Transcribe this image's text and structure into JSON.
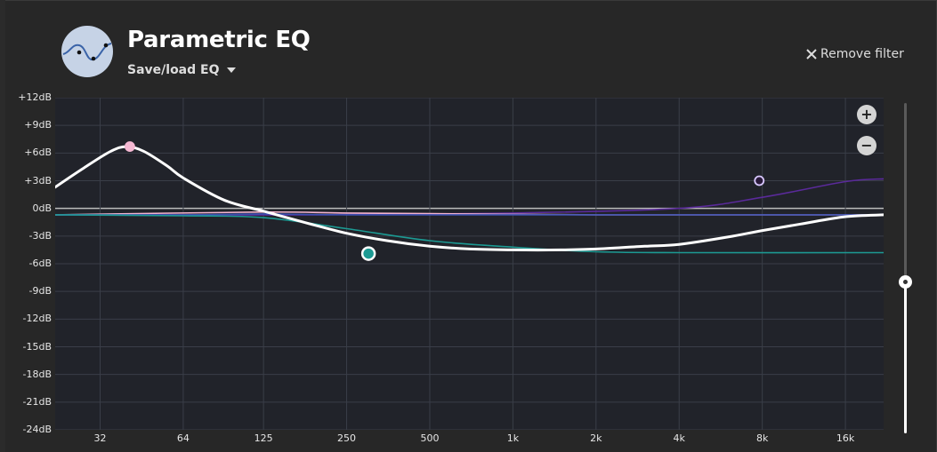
{
  "header": {
    "title": "Parametric EQ",
    "save_load": "Save/load EQ",
    "remove_filter": "Remove filter",
    "logo_icon": "eq-curve-icon"
  },
  "zoom": {
    "in_label": "+",
    "out_label": "−"
  },
  "gain_slider": {
    "value_fraction": 0.46
  },
  "colors": {
    "background": "#272727",
    "plot_bg": "#21232a",
    "grid": "#3a3e48",
    "total_curve": "#ffffff",
    "filter_pink": "#f3b4cf",
    "filter_teal": "#1c9a93",
    "filter_purple": "#5a2a9a",
    "filter_blue": "#3a4fb0"
  },
  "chart_data": {
    "type": "line",
    "title": "Parametric EQ",
    "xscale": "log",
    "xlim": [
      22,
      22000
    ],
    "ylim": [
      -24,
      12
    ],
    "x_ticks": [
      {
        "value": 32,
        "label": "32"
      },
      {
        "value": 64,
        "label": "64"
      },
      {
        "value": 125,
        "label": "125"
      },
      {
        "value": 250,
        "label": "250"
      },
      {
        "value": 500,
        "label": "500"
      },
      {
        "value": 1000,
        "label": "1k"
      },
      {
        "value": 2000,
        "label": "2k"
      },
      {
        "value": 4000,
        "label": "4k"
      },
      {
        "value": 8000,
        "label": "8k"
      },
      {
        "value": 16000,
        "label": "16k"
      }
    ],
    "y_ticks": [
      {
        "value": 12,
        "label": "+12dB"
      },
      {
        "value": 9,
        "label": "+9dB"
      },
      {
        "value": 6,
        "label": "+6dB"
      },
      {
        "value": 3,
        "label": "+3dB"
      },
      {
        "value": 0,
        "label": "0dB"
      },
      {
        "value": -3,
        "label": "-3dB"
      },
      {
        "value": -6,
        "label": "-6dB"
      },
      {
        "value": -9,
        "label": "-9dB"
      },
      {
        "value": -12,
        "label": "-12dB"
      },
      {
        "value": -15,
        "label": "-15dB"
      },
      {
        "value": -18,
        "label": "-18dB"
      },
      {
        "value": -21,
        "label": "-21dB"
      },
      {
        "value": -24,
        "label": "-24dB"
      }
    ],
    "series": [
      {
        "name": "filter-purple",
        "color": "#5a2a9a",
        "points": [
          [
            22,
            -0.7
          ],
          [
            200,
            -0.7
          ],
          [
            1000,
            -0.5
          ],
          [
            4000,
            0
          ],
          [
            8000,
            1.2
          ],
          [
            16000,
            2.9
          ],
          [
            22000,
            3.2
          ]
        ]
      },
      {
        "name": "filter-pink",
        "color": "#f3b4cf",
        "points": [
          [
            22,
            -0.7
          ],
          [
            120,
            -0.4
          ],
          [
            250,
            -0.5
          ],
          [
            700,
            -0.6
          ],
          [
            2000,
            -0.7
          ],
          [
            8000,
            -0.7
          ],
          [
            22000,
            -0.7
          ]
        ]
      },
      {
        "name": "filter-blue",
        "color": "#3a4fb0",
        "points": [
          [
            22,
            -0.7
          ],
          [
            64,
            -0.7
          ],
          [
            125,
            -0.6
          ],
          [
            250,
            -0.7
          ],
          [
            1000,
            -0.7
          ],
          [
            4000,
            -0.7
          ],
          [
            22000,
            -0.7
          ]
        ]
      },
      {
        "name": "filter-teal",
        "color": "#1c9a93",
        "points": [
          [
            22,
            -0.7
          ],
          [
            64,
            -0.8
          ],
          [
            125,
            -1.0
          ],
          [
            250,
            -2.2
          ],
          [
            500,
            -3.5
          ],
          [
            1000,
            -4.2
          ],
          [
            2000,
            -4.7
          ],
          [
            4000,
            -4.8
          ],
          [
            22000,
            -4.8
          ]
        ]
      },
      {
        "name": "total",
        "color": "#ffffff",
        "points": [
          [
            22,
            2.3
          ],
          [
            28,
            4.4
          ],
          [
            35,
            6.2
          ],
          [
            40,
            6.7
          ],
          [
            46,
            6.2
          ],
          [
            56,
            4.6
          ],
          [
            64,
            3.3
          ],
          [
            90,
            0.9
          ],
          [
            125,
            -0.3
          ],
          [
            180,
            -1.6
          ],
          [
            250,
            -2.7
          ],
          [
            350,
            -3.5
          ],
          [
            500,
            -4.1
          ],
          [
            700,
            -4.4
          ],
          [
            1000,
            -4.5
          ],
          [
            1500,
            -4.5
          ],
          [
            2000,
            -4.4
          ],
          [
            3000,
            -4.1
          ],
          [
            4000,
            -3.9
          ],
          [
            6000,
            -3.1
          ],
          [
            8000,
            -2.4
          ],
          [
            11000,
            -1.7
          ],
          [
            16000,
            -0.9
          ],
          [
            22000,
            -0.7
          ]
        ]
      }
    ],
    "handles": [
      {
        "name": "pink-filter-handle",
        "freq": 41,
        "gain": 6.7,
        "color": "#f5b8d2",
        "stroke": "#f5b8d2"
      },
      {
        "name": "teal-filter-handle",
        "freq": 300,
        "gain": -4.9,
        "color": "#1c9a93",
        "stroke": "#ffffff"
      },
      {
        "name": "purple-filter-handle",
        "freq": 7800,
        "gain": 3.0,
        "color": "#2a1a3a",
        "stroke": "#d9c8ff"
      }
    ]
  }
}
